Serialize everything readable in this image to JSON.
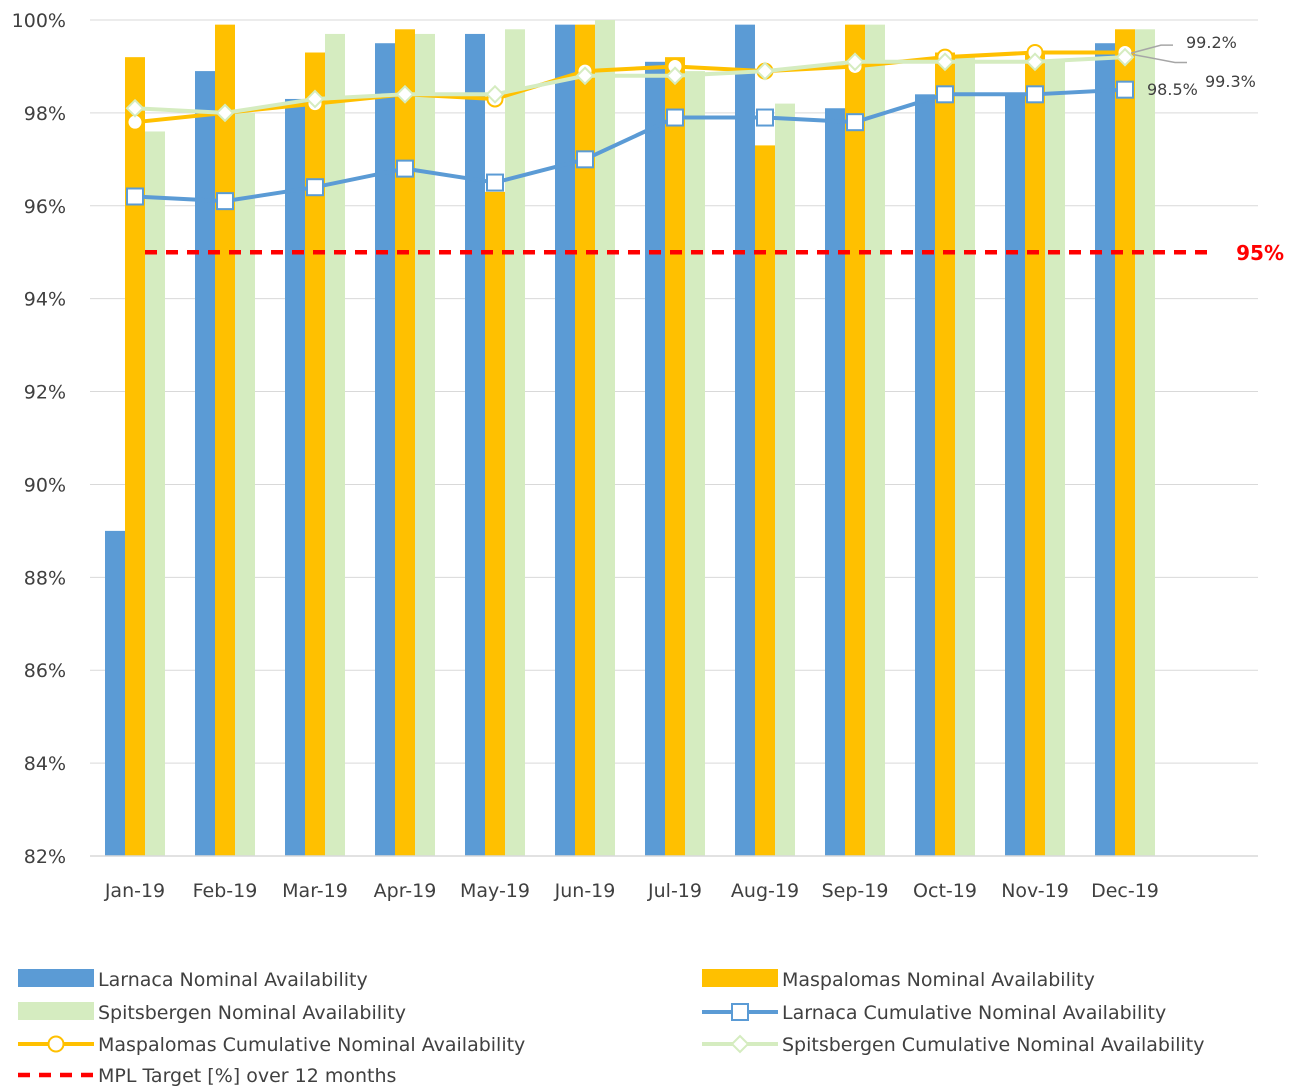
{
  "chart_data": {
    "type": "bar",
    "title": "",
    "xlabel": "",
    "ylabel": "",
    "ylim": [
      82,
      100
    ],
    "y_ticks": [
      "82%",
      "84%",
      "86%",
      "88%",
      "90%",
      "92%",
      "94%",
      "96%",
      "98%",
      "100%"
    ],
    "y_tick_values": [
      82,
      84,
      86,
      88,
      90,
      92,
      94,
      96,
      98,
      100
    ],
    "grid": "horizontal",
    "legend_position": "bottom",
    "categories": [
      "Jan-19",
      "Feb-19",
      "Mar-19",
      "Apr-19",
      "May-19",
      "Jun-19",
      "Jul-19",
      "Aug-19",
      "Sep-19",
      "Oct-19",
      "Nov-19",
      "Dec-19"
    ],
    "bar_series": [
      {
        "name": "Larnaca Nominal Availability",
        "color": "#5b9bd5",
        "values": [
          89.0,
          98.9,
          98.3,
          99.5,
          99.7,
          99.9,
          99.1,
          99.9,
          98.1,
          98.4,
          98.4,
          99.5
        ]
      },
      {
        "name": "Maspalomas Nominal Availability",
        "color": "#ffc000",
        "values": [
          99.2,
          99.9,
          99.3,
          99.8,
          96.3,
          99.9,
          99.2,
          97.3,
          99.9,
          99.3,
          99.3,
          99.8
        ]
      },
      {
        "name": "Spitsbergen Nominal Availability",
        "color": "#d5ecc0",
        "values": [
          97.6,
          98.0,
          99.7,
          99.7,
          99.8,
          100.0,
          98.9,
          98.2,
          99.9,
          99.2,
          99.1,
          99.8
        ]
      }
    ],
    "line_series": [
      {
        "name": "Larnaca Cumulative Nominal Availability",
        "color": "#5b9bd5",
        "marker": "square",
        "values": [
          96.2,
          96.1,
          96.4,
          96.8,
          96.5,
          97.0,
          97.9,
          97.9,
          97.8,
          98.4,
          98.4,
          98.5
        ]
      },
      {
        "name": "Maspalomas Cumulative Nominal Availability",
        "color": "#ffc000",
        "marker": "circle",
        "values": [
          97.8,
          98.0,
          98.2,
          98.4,
          98.3,
          98.9,
          99.0,
          98.9,
          99.0,
          99.2,
          99.3,
          99.3
        ]
      },
      {
        "name": "Spitsbergen Cumulative Nominal Availability",
        "color": "#d5ecc0",
        "marker": "diamond",
        "values": [
          98.1,
          98.0,
          98.3,
          98.4,
          98.4,
          98.8,
          98.8,
          98.9,
          99.1,
          99.1,
          99.1,
          99.2
        ]
      }
    ],
    "target": {
      "name": "MPL Target [%] over 12 months",
      "value": 95,
      "label": "95%",
      "color": "#ff0000"
    },
    "data_labels": [
      "99.2%",
      "98.5%",
      "99.3%"
    ]
  }
}
